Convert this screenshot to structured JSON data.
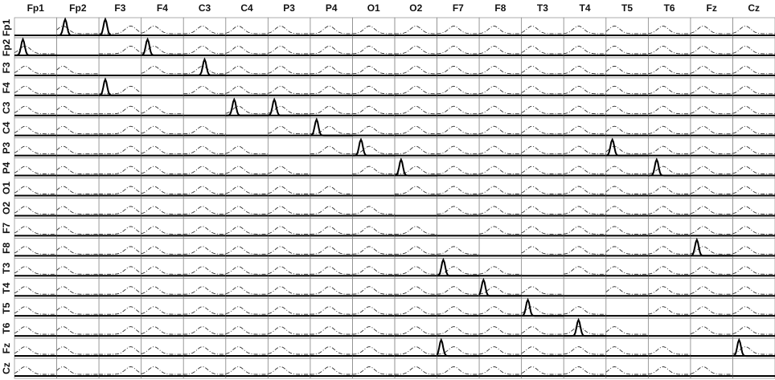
{
  "chart_data": {
    "type": "small-multiples",
    "channels": [
      "Fp1",
      "Fp2",
      "F3",
      "F4",
      "C3",
      "C4",
      "P3",
      "P4",
      "O1",
      "O2",
      "F7",
      "F8",
      "T3",
      "T4",
      "T5",
      "T6",
      "Fz",
      "Cz"
    ],
    "dashed_peaks": [
      0.25,
      0.15,
      0.75,
      0.3,
      0.45,
      0.3,
      0.3,
      0.45,
      0.4,
      0.5,
      0.4,
      0.35,
      0.25,
      0.35,
      0.2,
      0.35,
      0.3,
      0.3
    ],
    "links": [
      {
        "from": "Fp1",
        "to": "Fp2",
        "peak": 0.2
      },
      {
        "from": "Fp1",
        "to": "F3",
        "peak": 0.15
      },
      {
        "from": "Fp2",
        "to": "Fp1",
        "peak": 0.2
      },
      {
        "from": "Fp2",
        "to": "F4",
        "peak": 0.15
      },
      {
        "from": "F3",
        "to": "C3",
        "peak": 0.5
      },
      {
        "from": "F4",
        "to": "F3",
        "peak": 0.15
      },
      {
        "from": "C3",
        "to": "C4",
        "peak": 0.2
      },
      {
        "from": "C3",
        "to": "P3",
        "peak": 0.15
      },
      {
        "from": "C4",
        "to": "P4",
        "peak": 0.15
      },
      {
        "from": "P3",
        "to": "O1",
        "peak": 0.2
      },
      {
        "from": "P3",
        "to": "T5",
        "peak": 0.15
      },
      {
        "from": "P4",
        "to": "O2",
        "peak": 0.15
      },
      {
        "from": "P4",
        "to": "T6",
        "peak": 0.2
      },
      {
        "from": "F8",
        "to": "Fz",
        "peak": 0.15
      },
      {
        "from": "T3",
        "to": "F7",
        "peak": 0.15
      },
      {
        "from": "T4",
        "to": "F8",
        "peak": 0.1
      },
      {
        "from": "T5",
        "to": "T3",
        "peak": 0.15
      },
      {
        "from": "T6",
        "to": "T4",
        "peak": 0.35
      },
      {
        "from": "Fz",
        "to": "F7",
        "peak": 0.1
      },
      {
        "from": "Fz",
        "to": "Cz",
        "peak": 0.15
      }
    ]
  }
}
